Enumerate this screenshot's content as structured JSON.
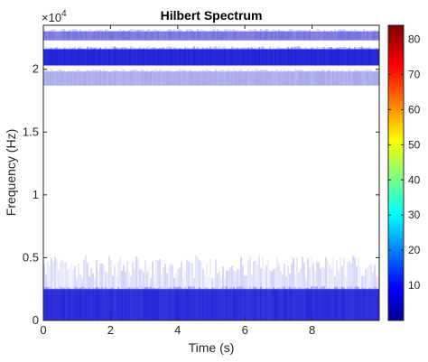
{
  "chart_data": {
    "type": "heatmap",
    "title": "Hilbert Spectrum",
    "xlabel": "Time (s)",
    "ylabel": "Frequency (Hz)",
    "xlim": [
      0,
      10
    ],
    "ylim": [
      0,
      23500
    ],
    "x_ticks": [
      0,
      2,
      4,
      6,
      8
    ],
    "x_tick_labels": [
      "0",
      "2",
      "4",
      "6",
      "8"
    ],
    "y_ticks": [
      0,
      5000,
      10000,
      15000,
      20000
    ],
    "y_tick_labels": [
      "0",
      "0.5",
      "1",
      "1.5",
      "2"
    ],
    "y_exponent_label": "×10",
    "y_exponent_power": "4",
    "colorbar": {
      "colormap": "jet",
      "range": [
        0,
        84
      ],
      "ticks": [
        10,
        20,
        30,
        40,
        50,
        60,
        70,
        80
      ],
      "tick_labels": [
        "10",
        "20",
        "30",
        "40",
        "50",
        "60",
        "70",
        "80"
      ]
    },
    "bands": [
      {
        "name": "",
        "freq_low": 0,
        "freq_high": 2500,
        "level": 7,
        "density": 0.9,
        "fringe_high": 5200
      },
      {
        "name": "",
        "freq_low": 20300,
        "freq_high": 21600,
        "level": 7,
        "density": 0.95,
        "fringe_high": 21800
      },
      {
        "name": "",
        "freq_low": 18700,
        "freq_high": 19800,
        "level": 6,
        "density": 0.25,
        "fringe_high": 19900
      },
      {
        "name": "",
        "freq_low": 22300,
        "freq_high": 23000,
        "level": 6,
        "density": 0.5,
        "fringe_high": 23100
      }
    ]
  }
}
